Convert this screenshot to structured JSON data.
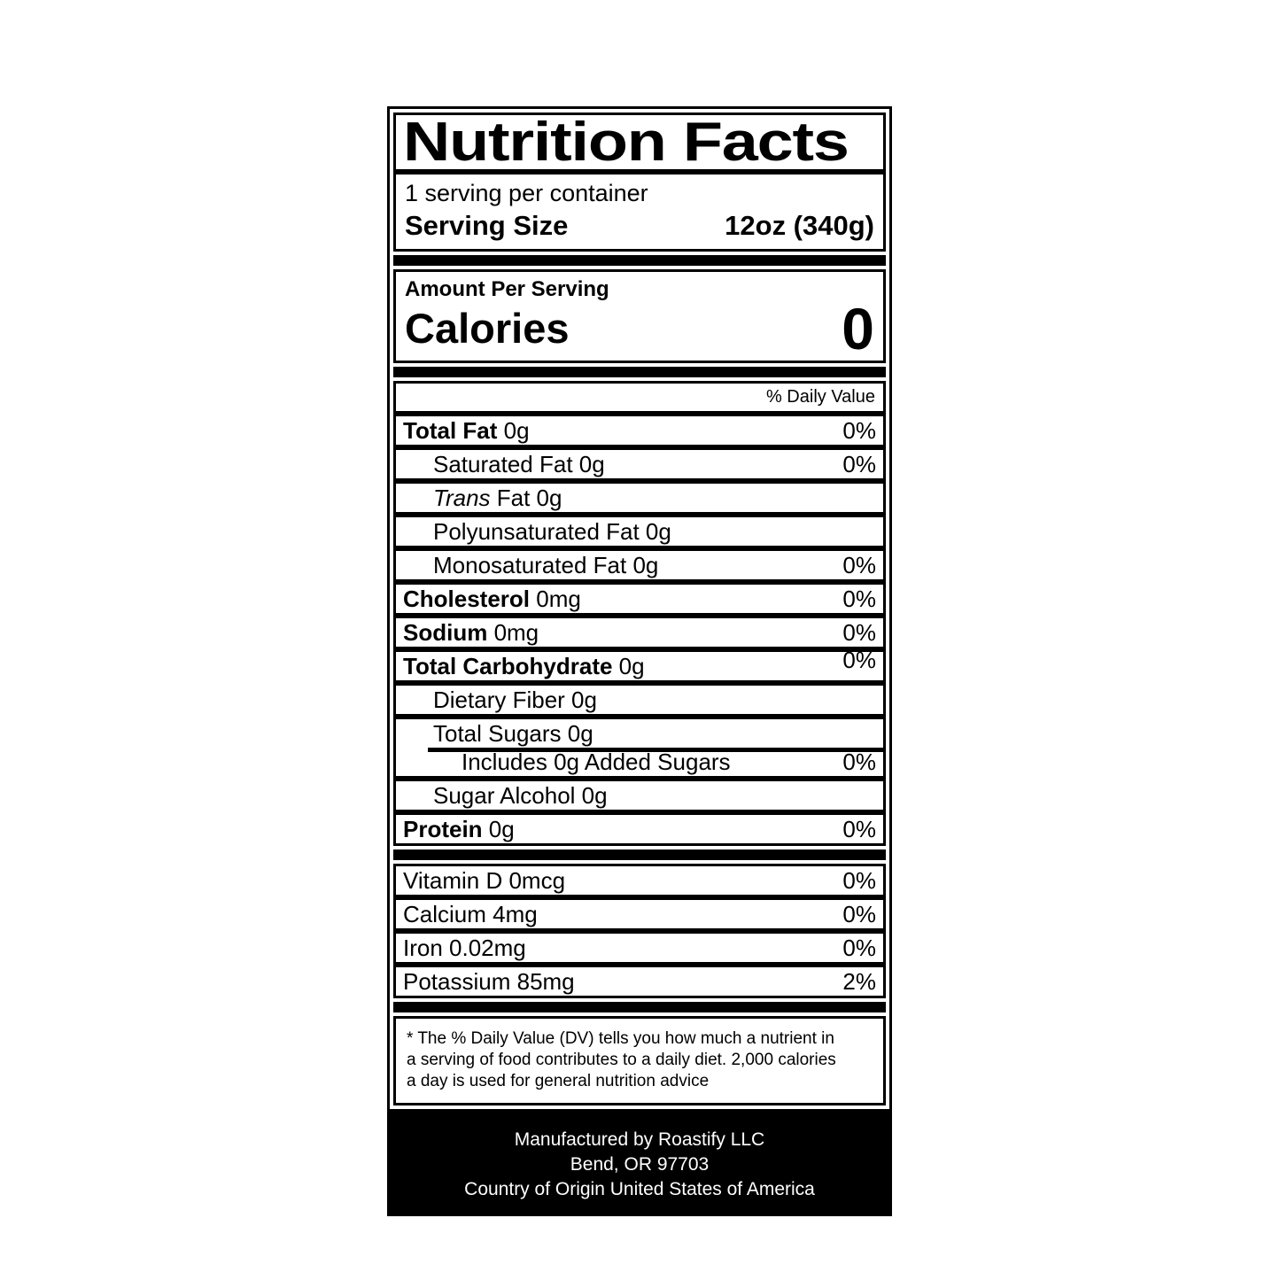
{
  "colors": {
    "ink": "#000000",
    "paper": "#ffffff"
  },
  "nutrition_label": {
    "title": "Nutrition Facts",
    "serving_info": {
      "servings_per_container": "1 serving per container",
      "serving_size_label": "Serving Size",
      "serving_size_value": "12oz (340g)"
    },
    "calories_section": {
      "amount_per_serving": "Amount Per Serving",
      "calories_label": "Calories",
      "calories_value": "0"
    },
    "daily_value_header": "% Daily Value",
    "nutrients": [
      {
        "bold": "Total Fat",
        "rest": " 0g",
        "pct": "0%"
      },
      {
        "rest": "Saturated Fat 0g",
        "pct": "0%"
      },
      {
        "italic": "Trans",
        "rest": " Fat 0g",
        "pct": ""
      },
      {
        "rest": "Polyunsaturated Fat 0g",
        "pct": ""
      },
      {
        "rest": "Monosaturated Fat 0g",
        "pct": "0%"
      },
      {
        "bold": "Cholesterol",
        "rest": " 0mg",
        "pct": "0%"
      },
      {
        "bold": "Sodium",
        "rest": " 0mg",
        "pct": "0%"
      },
      {
        "bold": "Total Carbohydrate",
        "rest": " 0g",
        "pct": "0%"
      },
      {
        "rest": "Dietary Fiber 0g",
        "pct": ""
      },
      {
        "rest": "Total Sugars 0g",
        "pct": ""
      },
      {
        "rest": "Includes 0g Added Sugars",
        "pct": "0%"
      },
      {
        "rest": "Sugar Alcohol 0g",
        "pct": ""
      },
      {
        "bold": "Protein",
        "rest": " 0g",
        "pct": "0%"
      }
    ],
    "vitamins": [
      {
        "text": "Vitamin D 0mcg",
        "pct": "0%"
      },
      {
        "text": "Calcium 4mg",
        "pct": "0%"
      },
      {
        "text": "Iron 0.02mg",
        "pct": "0%"
      },
      {
        "text": "Potassium 85mg",
        "pct": "2%"
      }
    ],
    "footnote_lines": [
      "* The % Daily Value (DV) tells you how much a nutrient in",
      "a serving of food contributes to a daily diet. 2,000 calories",
      "a day is used for general nutrition advice"
    ],
    "footer_lines": [
      "Manufactured by Roastify LLC",
      "Bend, OR 97703",
      "Country of Origin United States of America"
    ]
  }
}
